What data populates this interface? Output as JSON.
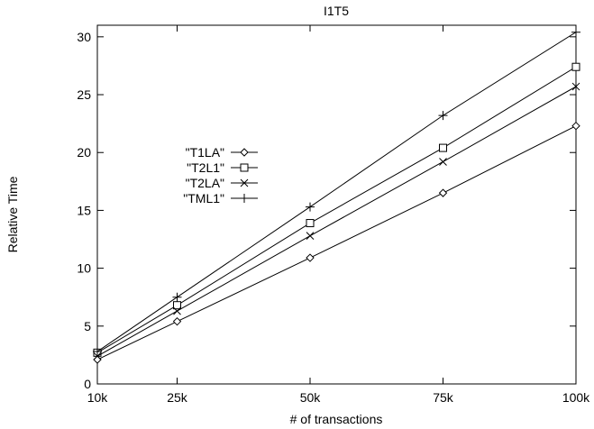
{
  "chart_data": {
    "type": "line",
    "title": "I1T5",
    "xlabel": "# of transactions",
    "ylabel": "Relative Time",
    "x": [
      10000,
      25000,
      50000,
      75000,
      100000
    ],
    "x_tick_labels": [
      "10k",
      "25k",
      "50k",
      "75k",
      "100k"
    ],
    "xlim": [
      10000,
      100000
    ],
    "ylim": [
      0,
      31
    ],
    "y_ticks": [
      0,
      5,
      10,
      15,
      20,
      25,
      30
    ],
    "grid": false,
    "legend_position": "left",
    "series": [
      {
        "name": "\"T1LA\"",
        "marker": "diamond",
        "values": [
          2.1,
          5.4,
          10.9,
          16.5,
          22.3
        ]
      },
      {
        "name": "\"T2L1\"",
        "marker": "square",
        "values": [
          2.7,
          6.8,
          13.9,
          20.4,
          27.4
        ]
      },
      {
        "name": "\"T2LA\"",
        "marker": "x",
        "values": [
          2.4,
          6.3,
          12.8,
          19.2,
          25.7
        ]
      },
      {
        "name": "\"TML1\"",
        "marker": "plus",
        "values": [
          2.8,
          7.5,
          15.3,
          23.2,
          30.4
        ]
      }
    ],
    "colors": {
      "line": "#000000",
      "background": "#ffffff"
    }
  }
}
